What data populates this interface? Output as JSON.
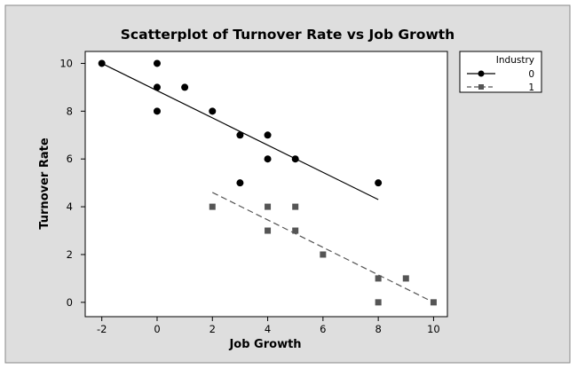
{
  "chart_data": {
    "type": "scatter",
    "title": "Scatterplot of Turnover Rate vs Job Growth",
    "xlabel": "Job Growth",
    "ylabel": "Turnover Rate",
    "xlim": [
      -2.6,
      10.5
    ],
    "ylim": [
      -0.6,
      10.5
    ],
    "xticks": [
      -2,
      0,
      2,
      4,
      6,
      8,
      10
    ],
    "yticks": [
      0,
      2,
      4,
      6,
      8,
      10
    ],
    "grid": false,
    "legend": {
      "title": "Industry",
      "placement": "right"
    },
    "series": [
      {
        "name": "0",
        "marker": "circle",
        "color": "#000000",
        "line_style": "solid",
        "points": [
          [
            -2,
            10
          ],
          [
            0,
            10
          ],
          [
            0,
            9
          ],
          [
            0,
            8
          ],
          [
            1,
            9
          ],
          [
            2,
            8
          ],
          [
            3,
            7
          ],
          [
            3,
            5
          ],
          [
            4,
            7
          ],
          [
            4,
            6
          ],
          [
            5,
            6
          ],
          [
            8,
            5
          ]
        ],
        "fit_line": [
          [
            -2,
            10
          ],
          [
            8,
            4.3
          ]
        ]
      },
      {
        "name": "1",
        "marker": "square",
        "color": "#555555",
        "line_style": "dashed",
        "points": [
          [
            2,
            4
          ],
          [
            4,
            4
          ],
          [
            4,
            3
          ],
          [
            5,
            4
          ],
          [
            5,
            3
          ],
          [
            6,
            2
          ],
          [
            8,
            1
          ],
          [
            8,
            0
          ],
          [
            9,
            1
          ],
          [
            10,
            0
          ]
        ],
        "fit_line": [
          [
            2,
            4.6
          ],
          [
            10,
            0
          ]
        ]
      }
    ]
  },
  "colors": {
    "outer_background": "#dedede",
    "plot_background": "#ffffff",
    "border": "#000000"
  }
}
